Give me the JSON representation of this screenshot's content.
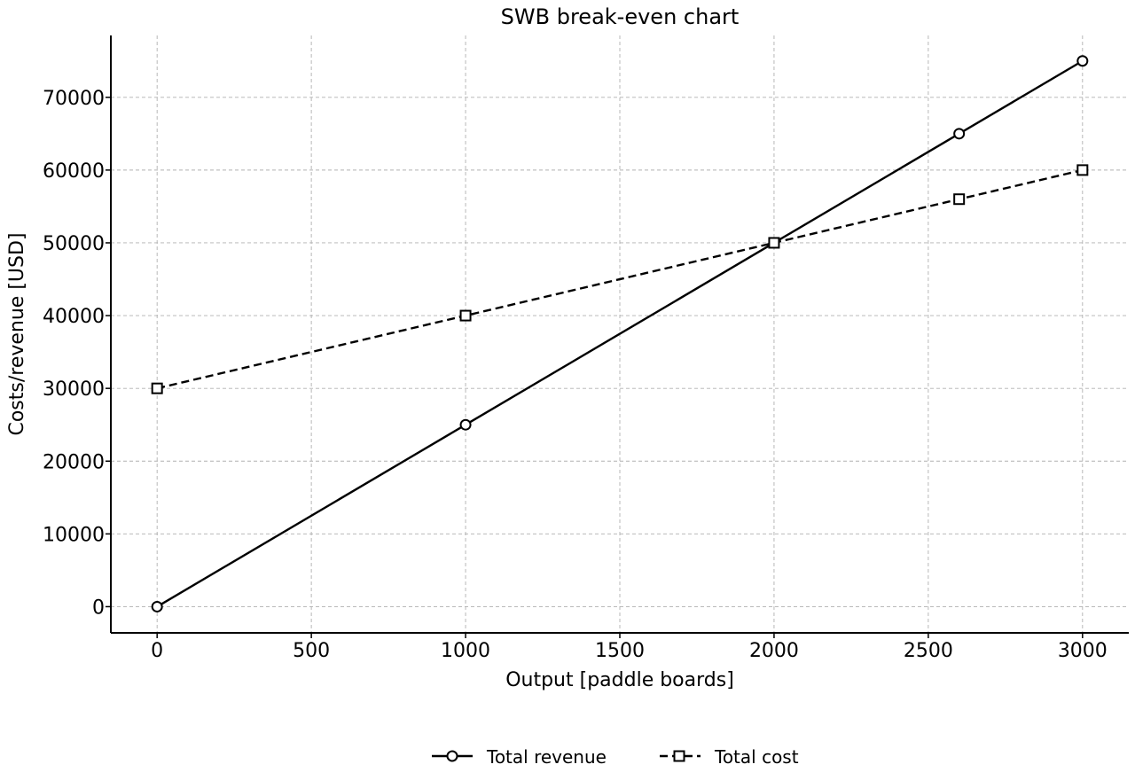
{
  "chart_data": {
    "type": "line",
    "title": "SWB break-even chart",
    "xlabel": "Output [paddle boards]",
    "ylabel": "Costs/revenue [USD]",
    "xlim": [
      -150,
      3150
    ],
    "ylim": [
      -3600,
      78500
    ],
    "xticks": [
      0,
      500,
      1000,
      1500,
      2000,
      2500,
      3000
    ],
    "yticks": [
      0,
      10000,
      20000,
      30000,
      40000,
      50000,
      60000,
      70000
    ],
    "grid": true,
    "legend_position": "bottom-center",
    "series": [
      {
        "name": "Total revenue",
        "line_style": "solid",
        "marker": "circle",
        "color": "#000000",
        "x": [
          0,
          1000,
          2000,
          2600,
          3000
        ],
        "y": [
          0,
          25000,
          50000,
          65000,
          75000
        ]
      },
      {
        "name": "Total cost",
        "line_style": "dashed",
        "marker": "square",
        "color": "#000000",
        "x": [
          0,
          1000,
          2000,
          2600,
          3000
        ],
        "y": [
          30000,
          40000,
          50000,
          56000,
          60000
        ]
      }
    ]
  }
}
